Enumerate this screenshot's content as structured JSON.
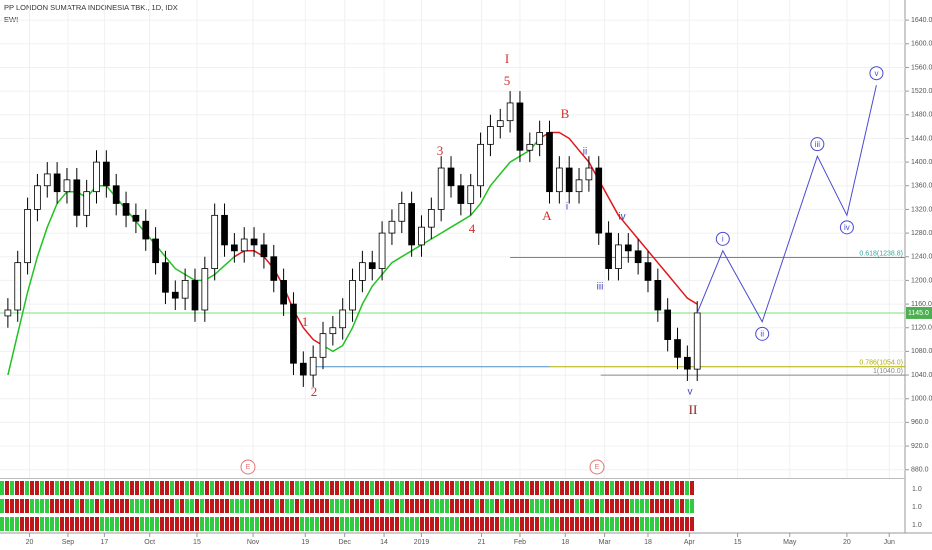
{
  "chart_data": {
    "type": "candlestick",
    "title": "PP LONDON SUMATRA INDONESIA TBK., 1D, IDX",
    "subtitle": "EWI",
    "xlim": [
      -0.8,
      91.1
    ],
    "ylim": [
      866,
      1674
    ],
    "xticks": [
      {
        "value": 2.2,
        "label": "20"
      },
      {
        "value": 6.1,
        "label": "Sep"
      },
      {
        "value": 9.8,
        "label": "17"
      },
      {
        "value": 14.4,
        "label": "Oct"
      },
      {
        "value": 19.2,
        "label": "15"
      },
      {
        "value": 24.9,
        "label": "Nov"
      },
      {
        "value": 30.2,
        "label": "19"
      },
      {
        "value": 34.2,
        "label": "Dec"
      },
      {
        "value": 38.2,
        "label": "14"
      },
      {
        "value": 42.0,
        "label": "2019"
      },
      {
        "value": 48.1,
        "label": "21"
      },
      {
        "value": 52.0,
        "label": "Feb"
      },
      {
        "value": 56.6,
        "label": "18"
      },
      {
        "value": 60.6,
        "label": "Mar"
      },
      {
        "value": 65.0,
        "label": "18"
      },
      {
        "value": 69.2,
        "label": "Apr"
      },
      {
        "value": 74.1,
        "label": "15"
      },
      {
        "value": 79.4,
        "label": "May"
      },
      {
        "value": 85.2,
        "label": "20"
      },
      {
        "value": 89.5,
        "label": "Jun"
      }
    ],
    "yticks": [
      {
        "value": 880,
        "label": "880.0"
      },
      {
        "value": 920,
        "label": "920.0"
      },
      {
        "value": 960,
        "label": "960.0"
      },
      {
        "value": 1000,
        "label": "1000.0"
      },
      {
        "value": 1040,
        "label": "1040.0"
      },
      {
        "value": 1080,
        "label": "1080.0"
      },
      {
        "value": 1120,
        "label": "1120.0"
      },
      {
        "value": 1160,
        "label": "1160.0"
      },
      {
        "value": 1200,
        "label": "1200.0"
      },
      {
        "value": 1240,
        "label": "1240.0"
      },
      {
        "value": 1280,
        "label": "1280.0"
      },
      {
        "value": 1320,
        "label": "1320.0"
      },
      {
        "value": 1360,
        "label": "1360.0"
      },
      {
        "value": 1400,
        "label": "1400.0"
      },
      {
        "value": 1440,
        "label": "1440.0"
      },
      {
        "value": 1480,
        "label": "1480.0"
      },
      {
        "value": 1520,
        "label": "1520.0"
      },
      {
        "value": 1560,
        "label": "1560.0"
      },
      {
        "value": 1600,
        "label": "1600.0"
      },
      {
        "value": 1640,
        "label": "1640.0"
      }
    ],
    "grid": true,
    "up_color": "#ffffff",
    "down_color": "#000000",
    "open": [
      1140,
      1150,
      1230,
      1320,
      1360,
      1380,
      1350,
      1370,
      1310,
      1350,
      1400,
      1360,
      1330,
      1310,
      1300,
      1270,
      1230,
      1180,
      1170,
      1200,
      1150,
      1220,
      1310,
      1260,
      1250,
      1270,
      1260,
      1240,
      1200,
      1160,
      1060,
      1040,
      1070,
      1110,
      1120,
      1150,
      1200,
      1230,
      1220,
      1280,
      1300,
      1330,
      1260,
      1290,
      1320,
      1390,
      1360,
      1330,
      1360,
      1430,
      1460,
      1470,
      1500,
      1420,
      1430,
      1450,
      1350,
      1390,
      1350,
      1370,
      1390,
      1280,
      1220,
      1260,
      1250,
      1230,
      1200,
      1150,
      1100,
      1070,
      1050
    ],
    "high": [
      1170,
      1250,
      1340,
      1380,
      1400,
      1400,
      1390,
      1390,
      1370,
      1420,
      1420,
      1380,
      1350,
      1330,
      1320,
      1290,
      1250,
      1200,
      1220,
      1220,
      1240,
      1330,
      1330,
      1280,
      1290,
      1290,
      1280,
      1260,
      1220,
      1180,
      1080,
      1090,
      1130,
      1140,
      1170,
      1220,
      1250,
      1250,
      1300,
      1320,
      1350,
      1350,
      1310,
      1340,
      1410,
      1410,
      1380,
      1380,
      1450,
      1480,
      1490,
      1520,
      1520,
      1450,
      1470,
      1470,
      1410,
      1410,
      1390,
      1410,
      1410,
      1300,
      1280,
      1280,
      1270,
      1250,
      1220,
      1170,
      1120,
      1090,
      1165
    ],
    "low": [
      1120,
      1130,
      1210,
      1300,
      1340,
      1330,
      1330,
      1290,
      1290,
      1330,
      1340,
      1310,
      1290,
      1280,
      1250,
      1210,
      1160,
      1150,
      1150,
      1130,
      1130,
      1200,
      1240,
      1230,
      1230,
      1240,
      1220,
      1180,
      1140,
      1040,
      1020,
      1020,
      1050,
      1090,
      1100,
      1130,
      1180,
      1200,
      1200,
      1260,
      1280,
      1240,
      1240,
      1270,
      1300,
      1340,
      1310,
      1310,
      1340,
      1410,
      1440,
      1450,
      1400,
      1400,
      1410,
      1330,
      1330,
      1330,
      1330,
      1350,
      1260,
      1200,
      1200,
      1230,
      1210,
      1180,
      1130,
      1080,
      1050,
      1030,
      1030
    ],
    "close": [
      1150,
      1230,
      1320,
      1360,
      1380,
      1350,
      1370,
      1310,
      1350,
      1400,
      1360,
      1330,
      1310,
      1300,
      1270,
      1230,
      1180,
      1170,
      1200,
      1150,
      1220,
      1310,
      1260,
      1250,
      1270,
      1260,
      1240,
      1200,
      1160,
      1060,
      1040,
      1070,
      1110,
      1120,
      1150,
      1200,
      1230,
      1220,
      1280,
      1300,
      1330,
      1260,
      1290,
      1320,
      1390,
      1360,
      1330,
      1360,
      1430,
      1460,
      1470,
      1500,
      1420,
      1430,
      1450,
      1350,
      1390,
      1350,
      1370,
      1390,
      1280,
      1220,
      1260,
      1250,
      1230,
      1200,
      1150,
      1100,
      1070,
      1050,
      1145
    ],
    "series": [
      {
        "color": "#22c222",
        "values": [
          1040,
          1110,
          1180,
          1240,
          1290,
          1330,
          1350,
          1350,
          1340,
          1360,
          1360,
          1340,
          1320,
          1300,
          1280,
          1260,
          1240,
          1220,
          1210,
          1200,
          1200,
          1210,
          1225,
          1240,
          null,
          null,
          null,
          null,
          null,
          null,
          null,
          null,
          1090,
          1080,
          1090,
          1120,
          1160,
          1190,
          1210,
          1230,
          1240,
          1250,
          1260,
          1270,
          1280,
          1290,
          1300,
          1310,
          1330,
          1360,
          1380,
          1400,
          1410,
          1420,
          1440,
          null,
          null,
          null,
          null,
          null,
          null,
          null,
          null,
          null,
          null,
          null,
          null,
          null,
          null,
          null,
          null,
          null
        ]
      },
      {
        "color": "#e0161b",
        "values": [
          null,
          null,
          null,
          null,
          null,
          null,
          null,
          null,
          null,
          null,
          null,
          null,
          null,
          null,
          null,
          null,
          null,
          null,
          null,
          null,
          null,
          null,
          null,
          1240,
          1250,
          1250,
          1240,
          1220,
          1190,
          1150,
          1120,
          1100,
          1090,
          null,
          null,
          null,
          null,
          null,
          null,
          null,
          null,
          null,
          null,
          null,
          null,
          null,
          null,
          null,
          null,
          null,
          null,
          null,
          null,
          null,
          1440,
          1450,
          1450,
          1440,
          1420,
          1400,
          1370,
          1340,
          1310,
          1290,
          1270,
          1250,
          1230,
          1210,
          1190,
          1170,
          1160
        ]
      }
    ],
    "projection": {
      "color": "#4a4ad0",
      "x": [
        70,
        72.6,
        76.6,
        82.2,
        85.2,
        88.2
      ],
      "values": [
        1145,
        1250,
        1130,
        1410,
        1310,
        1530
      ],
      "labels": [
        null,
        "i",
        "ii",
        "iii",
        "iv",
        "v"
      ]
    },
    "levels": [
      {
        "value": 1145,
        "color": "#7ee07e",
        "x0": -0.8,
        "x1": 91.1
      },
      {
        "value": 1054,
        "color": "#4a90c8",
        "x0": 30.7,
        "x1": 55
      },
      {
        "value": 1238.8,
        "color": "#3aa39a",
        "x0": 51,
        "x1": 91.1,
        "label": "0.618(1238.8)"
      },
      {
        "value": 1054,
        "color": "#b0b000",
        "x0": 55,
        "x1": 91.1,
        "label": "0.786(1054.0)"
      },
      {
        "value": 1040,
        "color": "#888888",
        "x0": 60.2,
        "x1": 91.1,
        "label": "1(1040.0)"
      }
    ],
    "last_price": {
      "value": 1145,
      "label": "1145.0",
      "color": "#4caf50"
    },
    "wave_labels": [
      "I",
      "5",
      "3",
      "4",
      "1",
      "2",
      "A",
      "B",
      "i",
      "ii",
      "iii",
      "iv",
      "v",
      "II"
    ],
    "indicator": {
      "marker": "E",
      "labels": [
        "1.0",
        "1.0",
        "1.0"
      ]
    }
  }
}
